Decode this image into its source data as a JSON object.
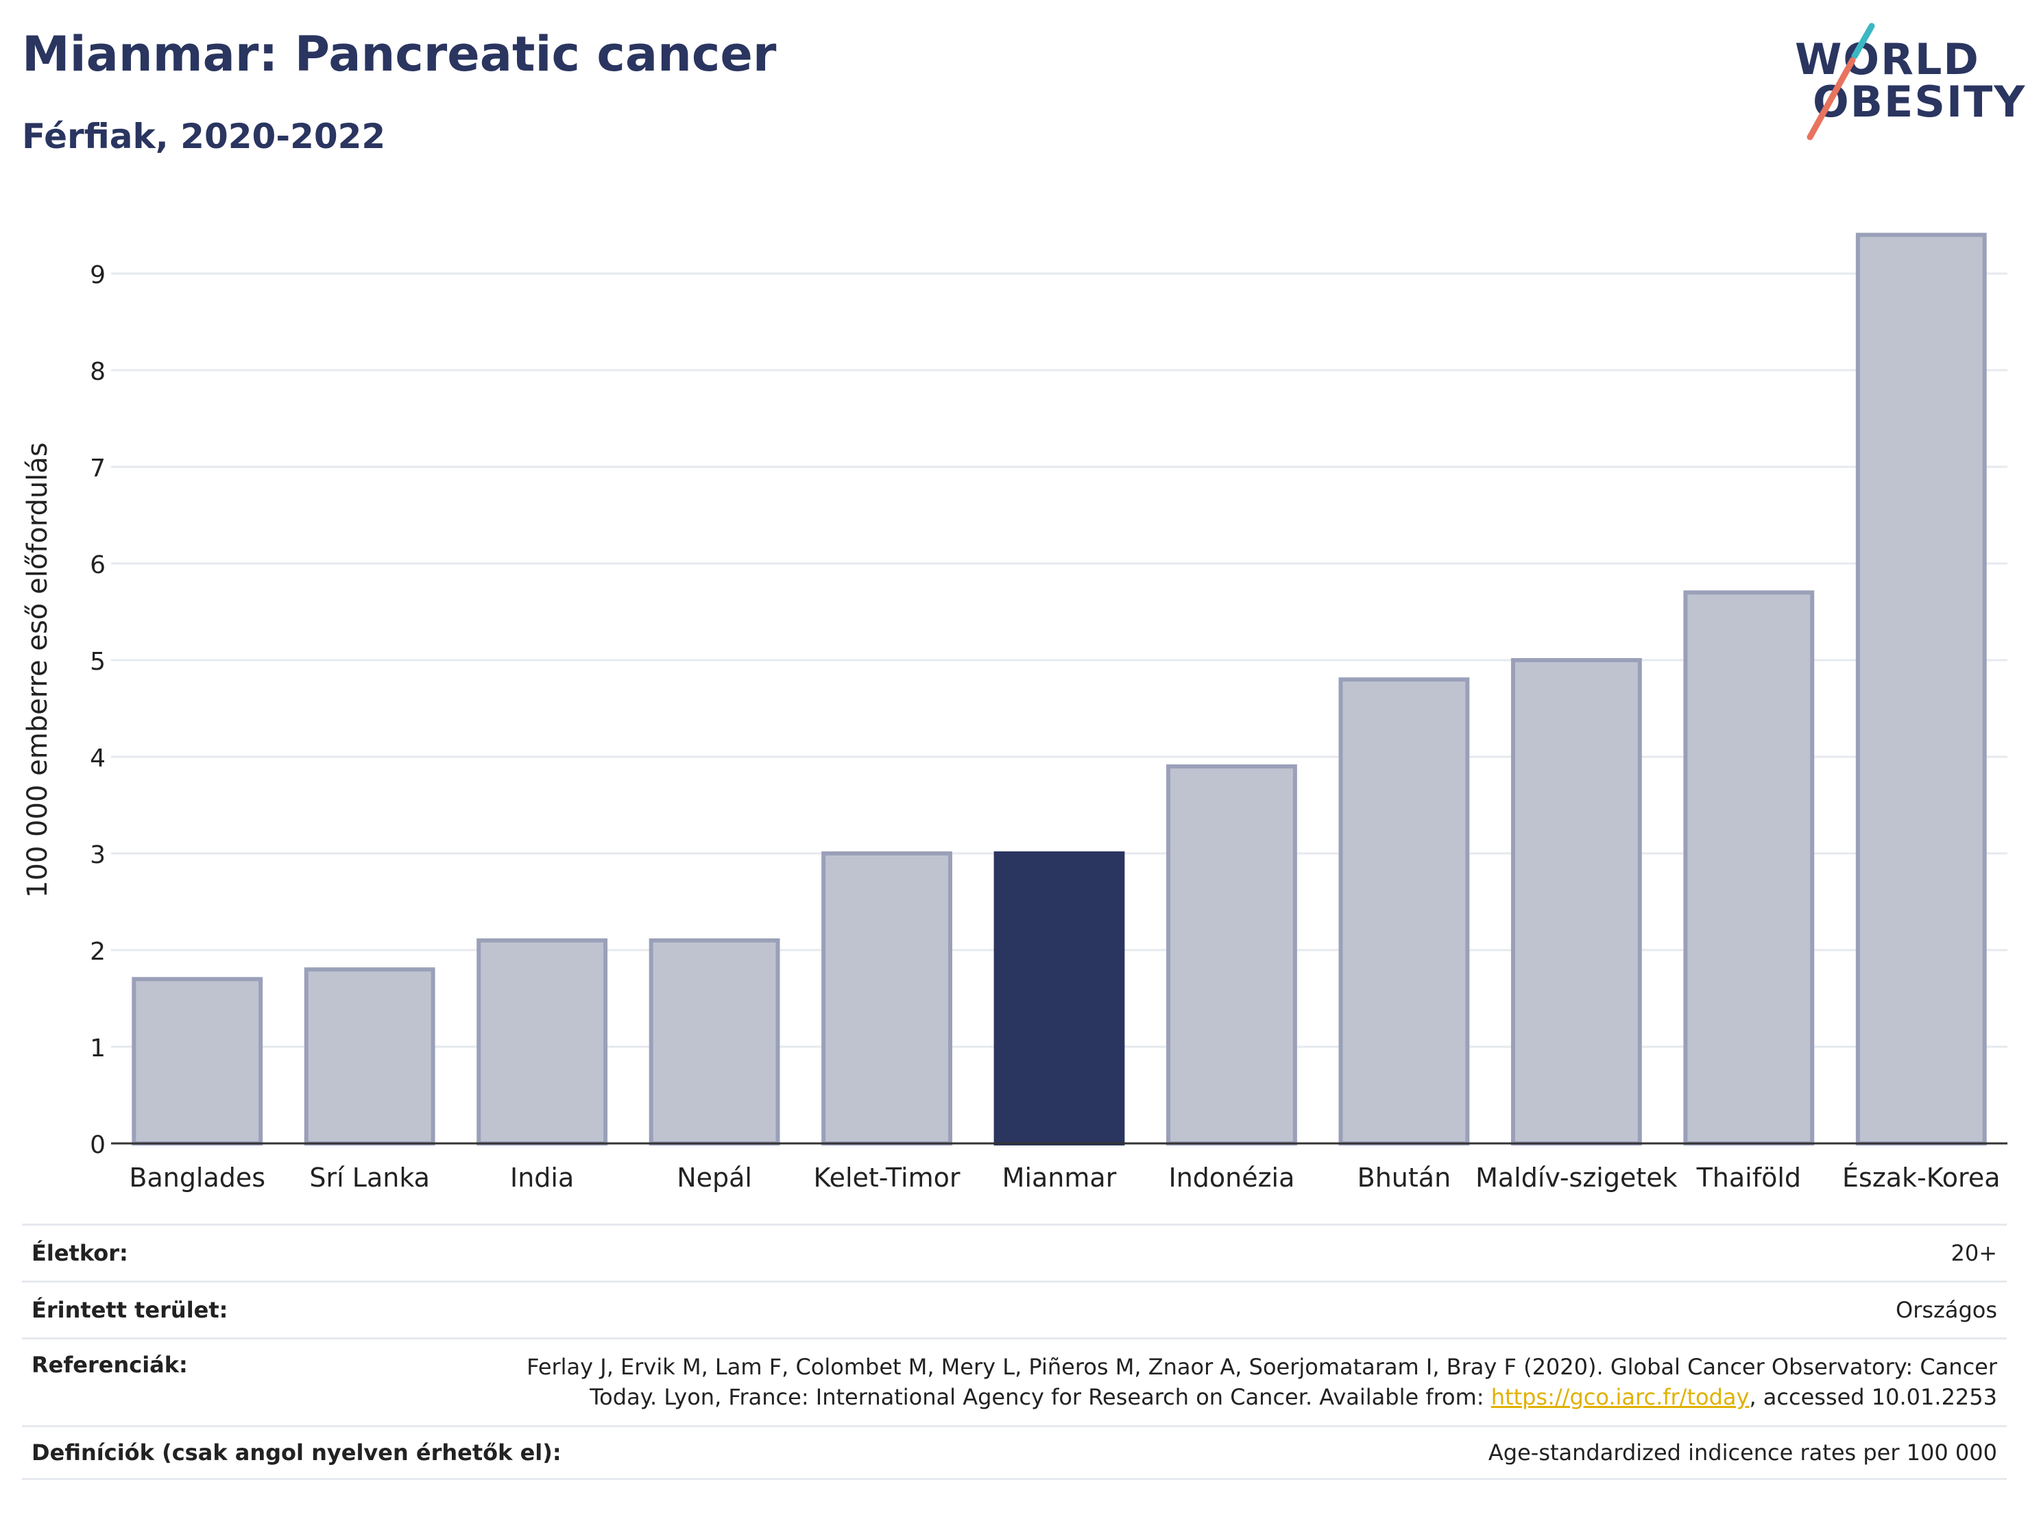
{
  "header": {
    "title": "Mianmar: Pancreatic cancer",
    "subtitle": "Férfiak, 2020-2022"
  },
  "logo": {
    "line1": "WORLD",
    "line2": "OBESITY",
    "colors": {
      "text": "#2a3560",
      "slash_teal": "#3bb8c3",
      "slash_coral": "#e8735f"
    }
  },
  "chart_data": {
    "type": "bar",
    "ylabel": "100 000 emberre eső előfordulás",
    "xlabel": "",
    "ylim": [
      0,
      9.6
    ],
    "yticks": [
      0,
      1,
      2,
      3,
      4,
      5,
      6,
      7,
      8,
      9
    ],
    "grid": true,
    "categories": [
      "Banglades",
      "Srí Lanka",
      "India",
      "Nepál",
      "Kelet-Timor",
      "Mianmar",
      "Indonézia",
      "Bhután",
      "Maldív-szigetek",
      "Thaiföld",
      "Észak-Korea"
    ],
    "values": [
      1.7,
      1.8,
      2.1,
      2.1,
      3.0,
      3.0,
      3.9,
      4.8,
      5.0,
      5.7,
      9.4
    ],
    "highlight": "Mianmar",
    "colors": {
      "bar": "#bfc3d0",
      "bar_border": "#9aa0b8",
      "highlight": "#2a3560",
      "grid": "#e6e9ee",
      "axis": "#333333"
    }
  },
  "meta": {
    "rows": [
      {
        "key": "Életkor:",
        "value": "20+"
      },
      {
        "key": "Érintett terület:",
        "value": "Országos"
      },
      {
        "key": "Referenciák:",
        "value_line1": "Ferlay J, Ervik M, Lam F, Colombet M, Mery L, Piñeros M, Znaor A, Soerjomataram I, Bray F (2020). Global Cancer Observatory: Cancer",
        "value_line2_pre": "Today. Lyon, France: International Agency for Research on Cancer. Available from: ",
        "link": "https://gco.iarc.fr/today",
        "value_line2_post": ", accessed 10.01.2253"
      },
      {
        "key": "Definíciók (csak angol nyelven érhetők el):",
        "value": "Age-standardized indicence rates per 100 000"
      }
    ]
  }
}
